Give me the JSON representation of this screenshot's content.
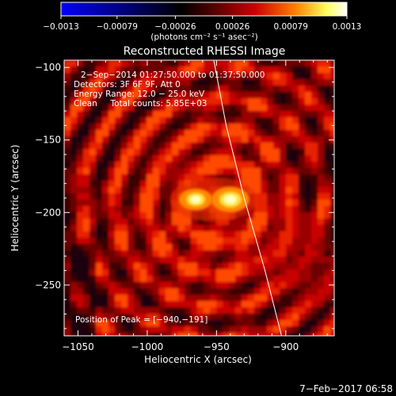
{
  "chart_data": {
    "type": "heatmap",
    "title": "Reconstructed RHESSI Image",
    "xlabel": "Heliocentric X (arcsec)",
    "ylabel": "Heliocentric Y (arcsec)",
    "xlim": [
      -1060,
      -865
    ],
    "ylim": [
      -285,
      -95
    ],
    "x_ticks": [
      -1050,
      -1000,
      -950,
      -900
    ],
    "x_tick_labels": [
      "−1050",
      "−1000",
      "−950",
      "−900"
    ],
    "y_ticks": [
      -100,
      -150,
      -200,
      -250
    ],
    "y_tick_labels": [
      "−100",
      "−150",
      "−200",
      "−250"
    ],
    "colorbar": {
      "range": [
        -0.0013,
        0.0013
      ],
      "ticks": [
        -0.0013,
        -0.00079,
        -0.00026,
        0.00026,
        0.00079,
        0.0013
      ],
      "tick_labels": [
        "−0.0013",
        "−0.00079",
        "−0.00026",
        "0.00026",
        "0.00079",
        "0.0013"
      ],
      "units": "(photons cm⁻² s⁻¹ asec⁻²)",
      "colors": [
        "#0000ff",
        "#000000",
        "#600000",
        "#d00000",
        "#ff8000",
        "#ffff60",
        "#ffffff"
      ]
    },
    "annotations": [
      "2−Sep−2014 01:27:50.000 to 01:37:50.000",
      "Detectors: 3F 6F 9F, Att 0",
      "Energy Range: 12.0 − 25.0 keV",
      "Clean     Total counts: 5.85E+03"
    ],
    "peak_label": "Position of Peak = [−940,−191]",
    "sources": [
      {
        "x": -965,
        "y": -191,
        "intensity": 0.85
      },
      {
        "x": -940,
        "y": -191,
        "intensity": 1.0
      }
    ],
    "limb_curve": {
      "x": [
        -952,
        -943,
        -930,
        -915,
        -903
      ],
      "y": [
        -95,
        -140,
        -190,
        -240,
        -285
      ]
    }
  },
  "footer": {
    "date": "7−Feb−2017 06:58"
  }
}
